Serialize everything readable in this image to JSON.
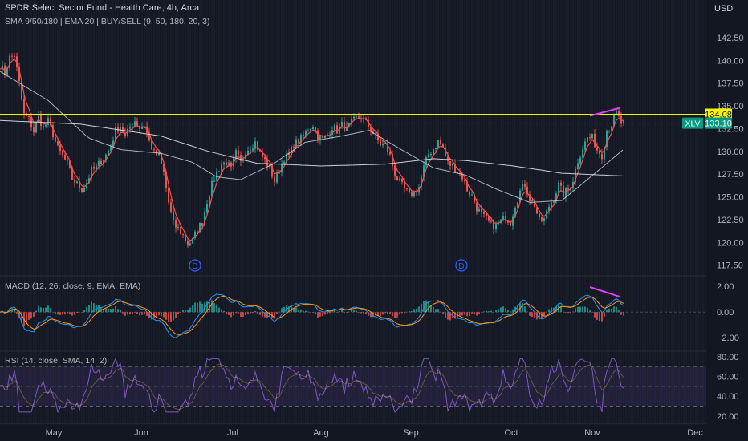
{
  "header": {
    "title": "SPDR Select Sector Fund - Health Care, 4h, Arca",
    "indicators": "SMA 9/50/180 | EMA 20 | BUY/SELL (9, 50, 180, 20, 3)",
    "currency": "USD"
  },
  "colors": {
    "background": "#131722",
    "up": "#26a69a",
    "down": "#ef5350",
    "resistance": "#f5f500",
    "divergence": "#e040fb",
    "price_label_bg": "#089981",
    "rsi": "#7e57c2"
  },
  "chart_data": [
    {
      "type": "candlestick",
      "name": "price",
      "symbol": "XLV",
      "x_ticks": [
        "May",
        "Jun",
        "Jul",
        "Aug",
        "Sep",
        "Oct",
        "Nov",
        "Dec"
      ],
      "y_ticks": [
        "142.50",
        "140.00",
        "137.50",
        "135.00",
        "132.50",
        "130.00",
        "127.50",
        "125.00",
        "122.50",
        "120.00",
        "117.50"
      ],
      "ylim": [
        116.5,
        144.0
      ],
      "close_series": [
        [
          0,
          139.5
        ],
        [
          6,
          138.6
        ],
        [
          12,
          140.3
        ],
        [
          18,
          140.6
        ],
        [
          24,
          137.5
        ],
        [
          30,
          134.0
        ],
        [
          36,
          133.5
        ],
        [
          42,
          132.2
        ],
        [
          48,
          133.8
        ],
        [
          54,
          132.6
        ],
        [
          60,
          133.3
        ],
        [
          66,
          131.9
        ],
        [
          72,
          130.3
        ],
        [
          78,
          129.5
        ],
        [
          84,
          128.6
        ],
        [
          90,
          127.0
        ],
        [
          96,
          126.4
        ],
        [
          102,
          125.8
        ],
        [
          108,
          126.6
        ],
        [
          114,
          127.9
        ],
        [
          120,
          128.2
        ],
        [
          126,
          129.0
        ],
        [
          132,
          129.6
        ],
        [
          138,
          130.6
        ],
        [
          144,
          132.3
        ],
        [
          150,
          132.8
        ],
        [
          156,
          131.6
        ],
        [
          162,
          132.6
        ],
        [
          168,
          133.4
        ],
        [
          174,
          132.6
        ],
        [
          180,
          132.9
        ],
        [
          186,
          131.1
        ],
        [
          192,
          129.8
        ],
        [
          198,
          129.5
        ],
        [
          204,
          127.6
        ],
        [
          210,
          124.4
        ],
        [
          216,
          122.0
        ],
        [
          222,
          121.5
        ],
        [
          228,
          120.8
        ],
        [
          234,
          119.8
        ],
        [
          240,
          120.2
        ],
        [
          246,
          121.5
        ],
        [
          252,
          122.2
        ],
        [
          258,
          124.5
        ],
        [
          264,
          126.3
        ],
        [
          270,
          127.7
        ],
        [
          276,
          128.6
        ],
        [
          282,
          128.8
        ],
        [
          288,
          128.0
        ],
        [
          294,
          129.8
        ],
        [
          300,
          128.7
        ],
        [
          306,
          130.1
        ],
        [
          312,
          130.5
        ],
        [
          318,
          131.0
        ],
        [
          324,
          129.8
        ],
        [
          330,
          129.0
        ],
        [
          336,
          128.2
        ],
        [
          342,
          126.7
        ],
        [
          348,
          128.0
        ],
        [
          354,
          129.3
        ],
        [
          360,
          129.5
        ],
        [
          366,
          130.8
        ],
        [
          372,
          131.2
        ],
        [
          378,
          131.6
        ],
        [
          384,
          132.5
        ],
        [
          390,
          132.9
        ],
        [
          396,
          131.6
        ],
        [
          402,
          131.3
        ],
        [
          408,
          131.8
        ],
        [
          414,
          132.7
        ],
        [
          420,
          132.3
        ],
        [
          426,
          132.9
        ],
        [
          432,
          132.4
        ],
        [
          438,
          133.2
        ],
        [
          444,
          133.6
        ],
        [
          450,
          133.8
        ],
        [
          456,
          133.1
        ],
        [
          462,
          132.4
        ],
        [
          468,
          131.6
        ],
        [
          474,
          130.8
        ],
        [
          480,
          130.7
        ],
        [
          486,
          129.5
        ],
        [
          492,
          127.5
        ],
        [
          498,
          126.6
        ],
        [
          504,
          125.8
        ],
        [
          510,
          125.2
        ],
        [
          516,
          125.5
        ],
        [
          522,
          126.1
        ],
        [
          528,
          128.2
        ],
        [
          534,
          129.7
        ],
        [
          540,
          130.3
        ],
        [
          546,
          131.1
        ],
        [
          552,
          130.4
        ],
        [
          558,
          128.7
        ],
        [
          564,
          128.4
        ],
        [
          570,
          127.8
        ],
        [
          576,
          127.2
        ],
        [
          582,
          125.8
        ],
        [
          588,
          125.1
        ],
        [
          594,
          123.8
        ],
        [
          600,
          123.0
        ],
        [
          606,
          122.5
        ],
        [
          612,
          121.9
        ],
        [
          618,
          121.8
        ],
        [
          624,
          122.3
        ],
        [
          630,
          122.8
        ],
        [
          636,
          122.2
        ],
        [
          642,
          124.1
        ],
        [
          648,
          125.6
        ],
        [
          654,
          126.4
        ],
        [
          660,
          124.8
        ],
        [
          666,
          124.1
        ],
        [
          672,
          122.3
        ],
        [
          678,
          122.5
        ],
        [
          684,
          124.0
        ],
        [
          690,
          124.9
        ],
        [
          696,
          126.3
        ],
        [
          702,
          125.3
        ],
        [
          708,
          125.8
        ],
        [
          714,
          126.9
        ],
        [
          720,
          129.0
        ],
        [
          726,
          130.4
        ],
        [
          732,
          131.5
        ],
        [
          738,
          131.5
        ],
        [
          744,
          130.2
        ],
        [
          750,
          129.6
        ],
        [
          756,
          132.3
        ],
        [
          762,
          133.0
        ],
        [
          768,
          134.2
        ],
        [
          774,
          133.1
        ]
      ],
      "moving_averages": [
        {
          "name": "SMA 50",
          "values": [
            [
              0,
              138.8
            ],
            [
              60,
              135.6
            ],
            [
              110,
              131.5
            ],
            [
              150,
              130.2
            ],
            [
              200,
              129.8
            ],
            [
              240,
              128.8
            ],
            [
              270,
              127.2
            ],
            [
              300,
              126.9
            ],
            [
              340,
              128.6
            ],
            [
              380,
              131.0
            ],
            [
              420,
              131.6
            ],
            [
              460,
              132.3
            ],
            [
              500,
              130.2
            ],
            [
              540,
              128.2
            ],
            [
              580,
              127.4
            ],
            [
              620,
              125.8
            ],
            [
              660,
              124.4
            ],
            [
              700,
              124.6
            ],
            [
              740,
              127.5
            ],
            [
              778,
              130.3
            ]
          ]
        },
        {
          "name": "SMA 180",
          "values": [
            [
              0,
              133.4
            ],
            [
              100,
              133.0
            ],
            [
              200,
              131.7
            ],
            [
              260,
              130.0
            ],
            [
              320,
              128.7
            ],
            [
              400,
              128.4
            ],
            [
              480,
              128.6
            ],
            [
              540,
              129.2
            ],
            [
              580,
              129.0
            ],
            [
              640,
              128.4
            ],
            [
              700,
              127.6
            ],
            [
              778,
              127.3
            ]
          ]
        }
      ],
      "resistance_level": 134.08,
      "resistance_label": "134.08",
      "last_price": 133.1,
      "last_price_label": "133.10",
      "divergence_line": [
        [
          735,
          133.9
        ],
        [
          773,
          134.8
        ]
      ],
      "dividend_markers": [
        {
          "x": 243,
          "label": "D"
        },
        {
          "x": 575,
          "label": "D"
        }
      ]
    },
    {
      "type": "line",
      "name": "macd",
      "title": "MACD (12, 26, close, 9, EMA, EMA)",
      "y_ticks": [
        "2.00",
        "0.00",
        "−2.00"
      ],
      "ylim": [
        -2.8,
        2.7
      ],
      "divergence_line": [
        [
          735,
          1.95
        ],
        [
          773,
          1.18
        ]
      ]
    },
    {
      "type": "line",
      "name": "rsi",
      "title": "RSI (14, close, SMA, 14, 2)",
      "y_ticks": [
        "80.00",
        "60.00",
        "40.00",
        "20.00"
      ],
      "ylim": [
        15,
        84
      ],
      "bands": [
        70,
        50,
        30
      ]
    }
  ]
}
